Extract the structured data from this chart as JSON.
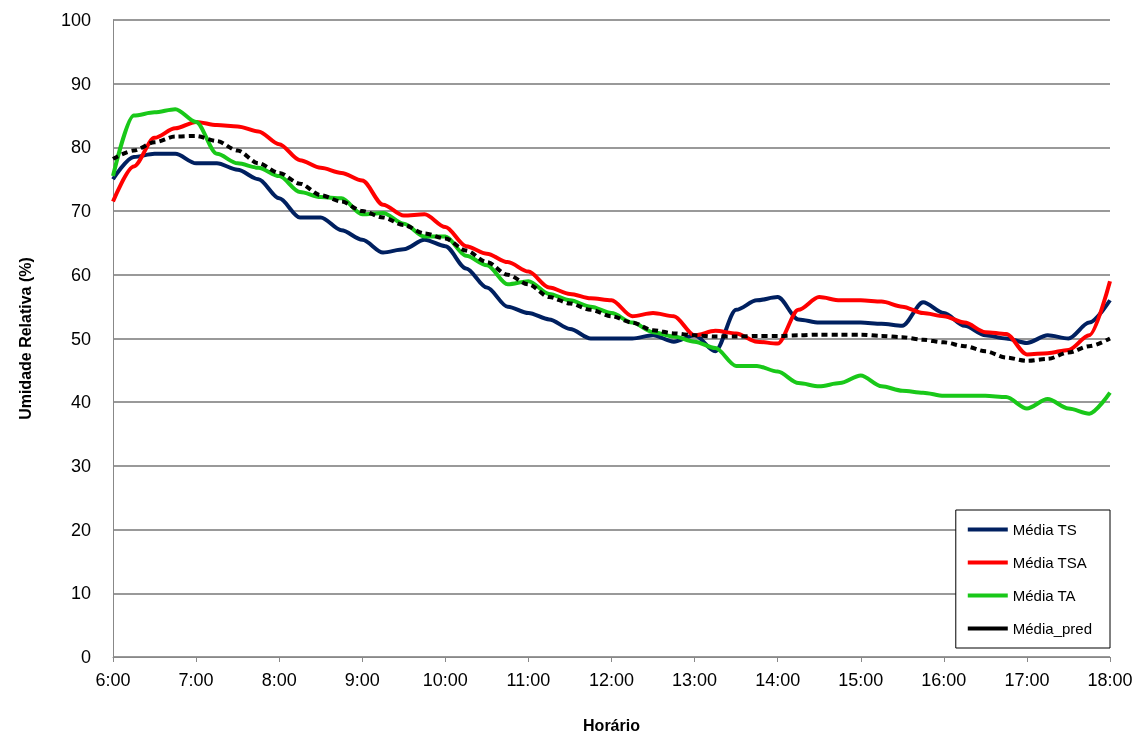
{
  "chart_data": {
    "type": "line",
    "xlabel": "Horário",
    "ylabel": "Umidade Relativa (%)",
    "x": [
      6,
      6.25,
      6.5,
      6.75,
      7,
      7.25,
      7.5,
      7.75,
      8,
      8.25,
      8.5,
      8.75,
      9,
      9.25,
      9.5,
      9.75,
      10,
      10.25,
      10.5,
      10.75,
      11,
      11.25,
      11.5,
      11.75,
      12,
      12.25,
      12.5,
      12.75,
      13,
      13.25,
      13.5,
      13.75,
      14,
      14.25,
      14.5,
      14.75,
      15,
      15.25,
      15.5,
      15.75,
      16,
      16.25,
      16.5,
      16.75,
      17,
      17.25,
      17.5,
      17.75,
      18
    ],
    "series": [
      {
        "name": "Média TS",
        "color": "#002060",
        "line_style": "solid",
        "values": [
          75,
          78.5,
          79,
          79,
          77.5,
          77.5,
          76.5,
          75,
          72,
          69,
          69,
          67,
          65.5,
          63.5,
          64,
          65.5,
          64.5,
          61,
          58,
          55,
          54,
          53,
          51.5,
          50,
          50,
          50,
          50.5,
          49.5,
          50.5,
          48,
          54.5,
          56,
          56.5,
          53,
          52.5,
          52.5,
          52.5,
          52.3,
          52,
          55.7,
          54,
          52,
          50.5,
          50,
          49.3,
          50.5,
          50,
          52.5,
          56
        ]
      },
      {
        "name": "Média TSA",
        "color": "#ff0000",
        "line_style": "solid",
        "values": [
          71.5,
          77,
          81.5,
          83,
          84,
          83.5,
          83.3,
          82.5,
          80.5,
          78,
          76.8,
          76,
          74.8,
          71,
          69.3,
          69.5,
          67.5,
          64.5,
          63.3,
          62,
          60.5,
          58,
          57,
          56.3,
          56,
          53.5,
          54,
          53.5,
          50.5,
          51.2,
          50.8,
          49.5,
          49.2,
          54.5,
          56.5,
          56,
          56,
          55.8,
          55,
          54,
          53.5,
          52.5,
          51,
          50.7,
          47.5,
          47.7,
          48.2,
          50.5,
          59
        ]
      },
      {
        "name": "Média TA",
        "color": "#19c819",
        "line_style": "solid",
        "values": [
          75.5,
          85,
          85.5,
          86,
          84,
          79,
          77.5,
          76.8,
          75.5,
          73,
          72.2,
          72,
          69.5,
          69.7,
          68,
          66,
          66,
          63,
          61.5,
          58.5,
          59,
          57,
          56,
          55,
          54,
          52.5,
          51,
          50.3,
          49.5,
          48.5,
          45.7,
          45.7,
          44.8,
          43,
          42.5,
          43,
          44.2,
          42.5,
          41.8,
          41.5,
          41,
          41,
          41,
          40.8,
          39,
          40.5,
          39,
          38.2,
          41.5
        ]
      },
      {
        "name": "Média_pred",
        "color": "#000000",
        "line_style": "dashed",
        "values": [
          78.2,
          79.5,
          80.8,
          81.7,
          81.8,
          81,
          79.5,
          77.5,
          76,
          74.3,
          72.5,
          71.5,
          70,
          69,
          67.8,
          66.5,
          65.7,
          63.8,
          62,
          60,
          58.5,
          56.5,
          55.5,
          54.5,
          53.5,
          52.5,
          51.3,
          50.8,
          50.5,
          50.3,
          50.3,
          50.4,
          50.4,
          50.5,
          50.6,
          50.6,
          50.6,
          50.4,
          50.2,
          49.8,
          49.4,
          48.8,
          48,
          47,
          46.5,
          46.8,
          47.8,
          48.8,
          50
        ]
      }
    ],
    "xlim": [
      6,
      18
    ],
    "xticks": [
      {
        "value": 6,
        "label": "6:00"
      },
      {
        "value": 7,
        "label": "7:00"
      },
      {
        "value": 8,
        "label": "8:00"
      },
      {
        "value": 9,
        "label": "9:00"
      },
      {
        "value": 10,
        "label": "10:00"
      },
      {
        "value": 11,
        "label": "11:00"
      },
      {
        "value": 12,
        "label": "12:00"
      },
      {
        "value": 13,
        "label": "13:00"
      },
      {
        "value": 14,
        "label": "14:00"
      },
      {
        "value": 15,
        "label": "15:00"
      },
      {
        "value": 16,
        "label": "16:00"
      },
      {
        "value": 17,
        "label": "17:00"
      },
      {
        "value": 18,
        "label": "18:00"
      }
    ],
    "ylim": [
      0,
      100
    ],
    "yticks": [
      0,
      10,
      20,
      30,
      40,
      50,
      60,
      70,
      80,
      90,
      100
    ],
    "grid": "y",
    "legend": "bottom right",
    "marker": "none"
  }
}
